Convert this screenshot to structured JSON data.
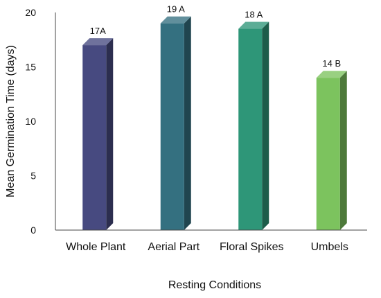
{
  "chart_data": {
    "type": "bar",
    "title": "",
    "xlabel": "Resting Conditions",
    "ylabel": "Mean Germination Time (days)",
    "ylim": [
      0,
      20
    ],
    "yticks": [
      0,
      5,
      10,
      15,
      20
    ],
    "grid": false,
    "categories": [
      "Whole Plant",
      "Aerial Part",
      "Floral Spikes",
      "Umbels"
    ],
    "values": [
      17,
      19,
      18.5,
      14
    ],
    "data_labels": [
      "17A",
      "19 A",
      "18 A",
      "14 B"
    ],
    "colors": [
      "#474a80",
      "#347080",
      "#2e9678",
      "#7cc35e"
    ]
  }
}
